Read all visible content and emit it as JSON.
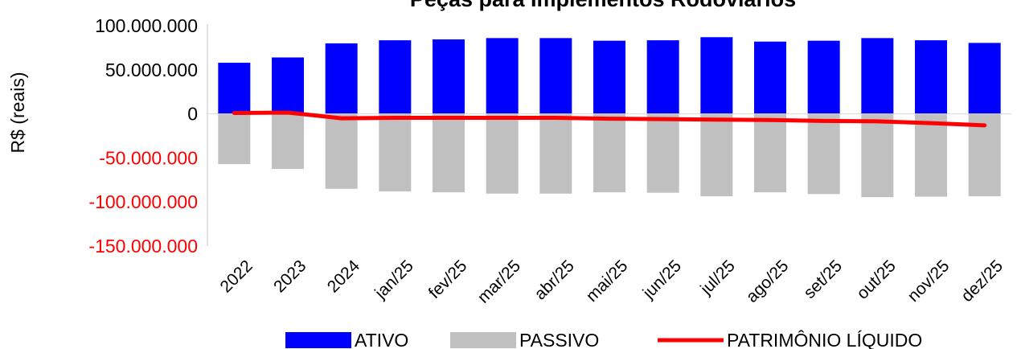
{
  "chart_data": {
    "type": "bar",
    "title": "Peças para Implementos Rodoviários",
    "ylabel": "R$ (reais)",
    "xlabel": "",
    "categories": [
      "2022",
      "2023",
      "2024",
      "jan/25",
      "fev/25",
      "mar/25",
      "abr/25",
      "mai/25",
      "jun/25",
      "jul/25",
      "ago/25",
      "set/25",
      "out/25",
      "nov/25",
      "dez/25"
    ],
    "ylim": [
      -150000000,
      100000000
    ],
    "yticks": [
      100000000,
      50000000,
      0,
      -50000000,
      -100000000,
      -150000000
    ],
    "ytick_labels": [
      "100.000.000",
      "50.000.000",
      "0",
      "-50.000.000",
      "-100.000.000",
      "-150.000.000"
    ],
    "grid": false,
    "legend_position": "bottom",
    "series": [
      {
        "name": "ATIVO",
        "type": "bar",
        "color": "#0000ff",
        "values": [
          58000000,
          64000000,
          80000000,
          83500000,
          84500000,
          86000000,
          86000000,
          83000000,
          83500000,
          87000000,
          82000000,
          83000000,
          86000000,
          83500000,
          80500000
        ]
      },
      {
        "name": "PASSIVO",
        "type": "bar",
        "color": "#c0c0c0",
        "values": [
          -57000000,
          -62500000,
          -85000000,
          -88000000,
          -89000000,
          -90500000,
          -90500000,
          -89000000,
          -89500000,
          -93500000,
          -89000000,
          -91000000,
          -94500000,
          -94000000,
          -93500000
        ]
      },
      {
        "name": "PATRIMÔNIO LÍQUIDO",
        "type": "line",
        "color": "#ff0000",
        "values": [
          1000000,
          1500000,
          -5000000,
          -4500000,
          -4500000,
          -4500000,
          -4500000,
          -5500000,
          -6000000,
          -6500000,
          -7000000,
          -8000000,
          -8500000,
          -10500000,
          -13000000
        ]
      }
    ],
    "negative_tick_color": "#ff0000",
    "positive_tick_color": "#000000"
  }
}
